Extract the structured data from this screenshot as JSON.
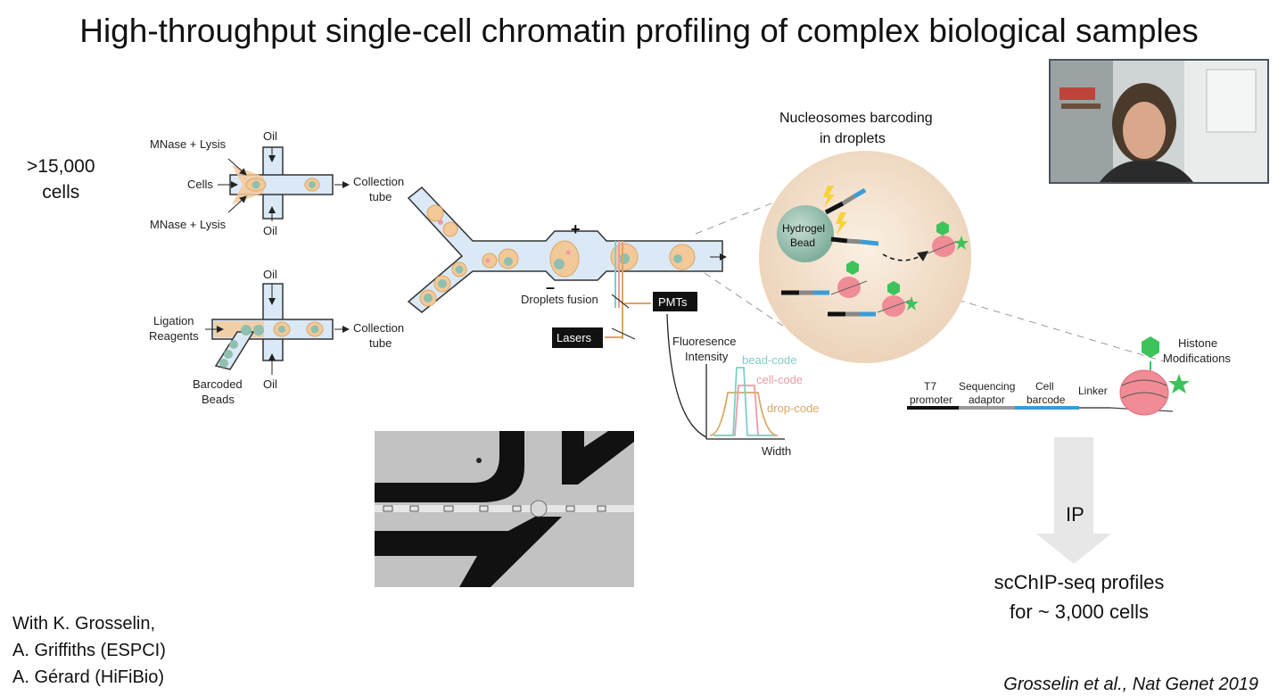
{
  "title": "High-throughput single-cell chromatin profiling of complex biological samples",
  "cells_count": ">15,000",
  "cells_word": "cells",
  "device": {
    "top_inlet_label": "MNase + Lysis",
    "cells_label": "Cells",
    "bottom_inlet_label": "MNase + Lysis",
    "oil": "Oil",
    "collection_line1": "Collection",
    "collection_line2": "tube",
    "ligation_line1": "Ligation",
    "ligation_line2": "Reagents",
    "barcoded_line1": "Barcoded",
    "barcoded_line2": "Beads",
    "plus": "+",
    "minus": "–",
    "droplets_fusion": "Droplets fusion",
    "pmts": "PMTs",
    "lasers": "Lasers"
  },
  "fluorescence": {
    "ylabel_line1": "Fluoresence",
    "ylabel_line2": "Intensity",
    "xlabel": "Width",
    "codes": [
      {
        "name": "bead-code",
        "color": "#7fcfc6"
      },
      {
        "name": "cell-code",
        "color": "#ee9aa6"
      },
      {
        "name": "drop-code",
        "color": "#d9a765"
      }
    ]
  },
  "nucleosome": {
    "title_line1": "Nucleosomes barcoding",
    "title_line2": "in droplets",
    "bead_line1": "Hydrogel",
    "bead_line2": "Bead"
  },
  "construct": {
    "t7_line1": "T7",
    "t7_line2": "promoter",
    "seq_line1": "Sequencing",
    "seq_line2": "adaptor",
    "cell_line1": "Cell",
    "cell_line2": "barcode",
    "linker": "Linker",
    "histone_line1": "Histone",
    "histone_line2": "Modifications"
  },
  "arrow_label": "IP",
  "result_line1": "scChIP-seq profiles",
  "result_line2": "for ~ 3,000 cells",
  "credits": [
    "With K. Grosselin,",
    "A. Griffiths (ESPCI)",
    "A. Gérard (HiFiBio)"
  ],
  "citation": "Grosselin et al., Nat Genet 2019",
  "colors": {
    "channel": "#dbe9f6",
    "channel_border": "#333333",
    "droplet": "#f3c99a",
    "bead": "#8fbfae",
    "sphere": "#f4e3cf",
    "nucleosome": "#f08c96",
    "histone_mark": "#3cc35a",
    "barcode": "#3a9bd8"
  }
}
